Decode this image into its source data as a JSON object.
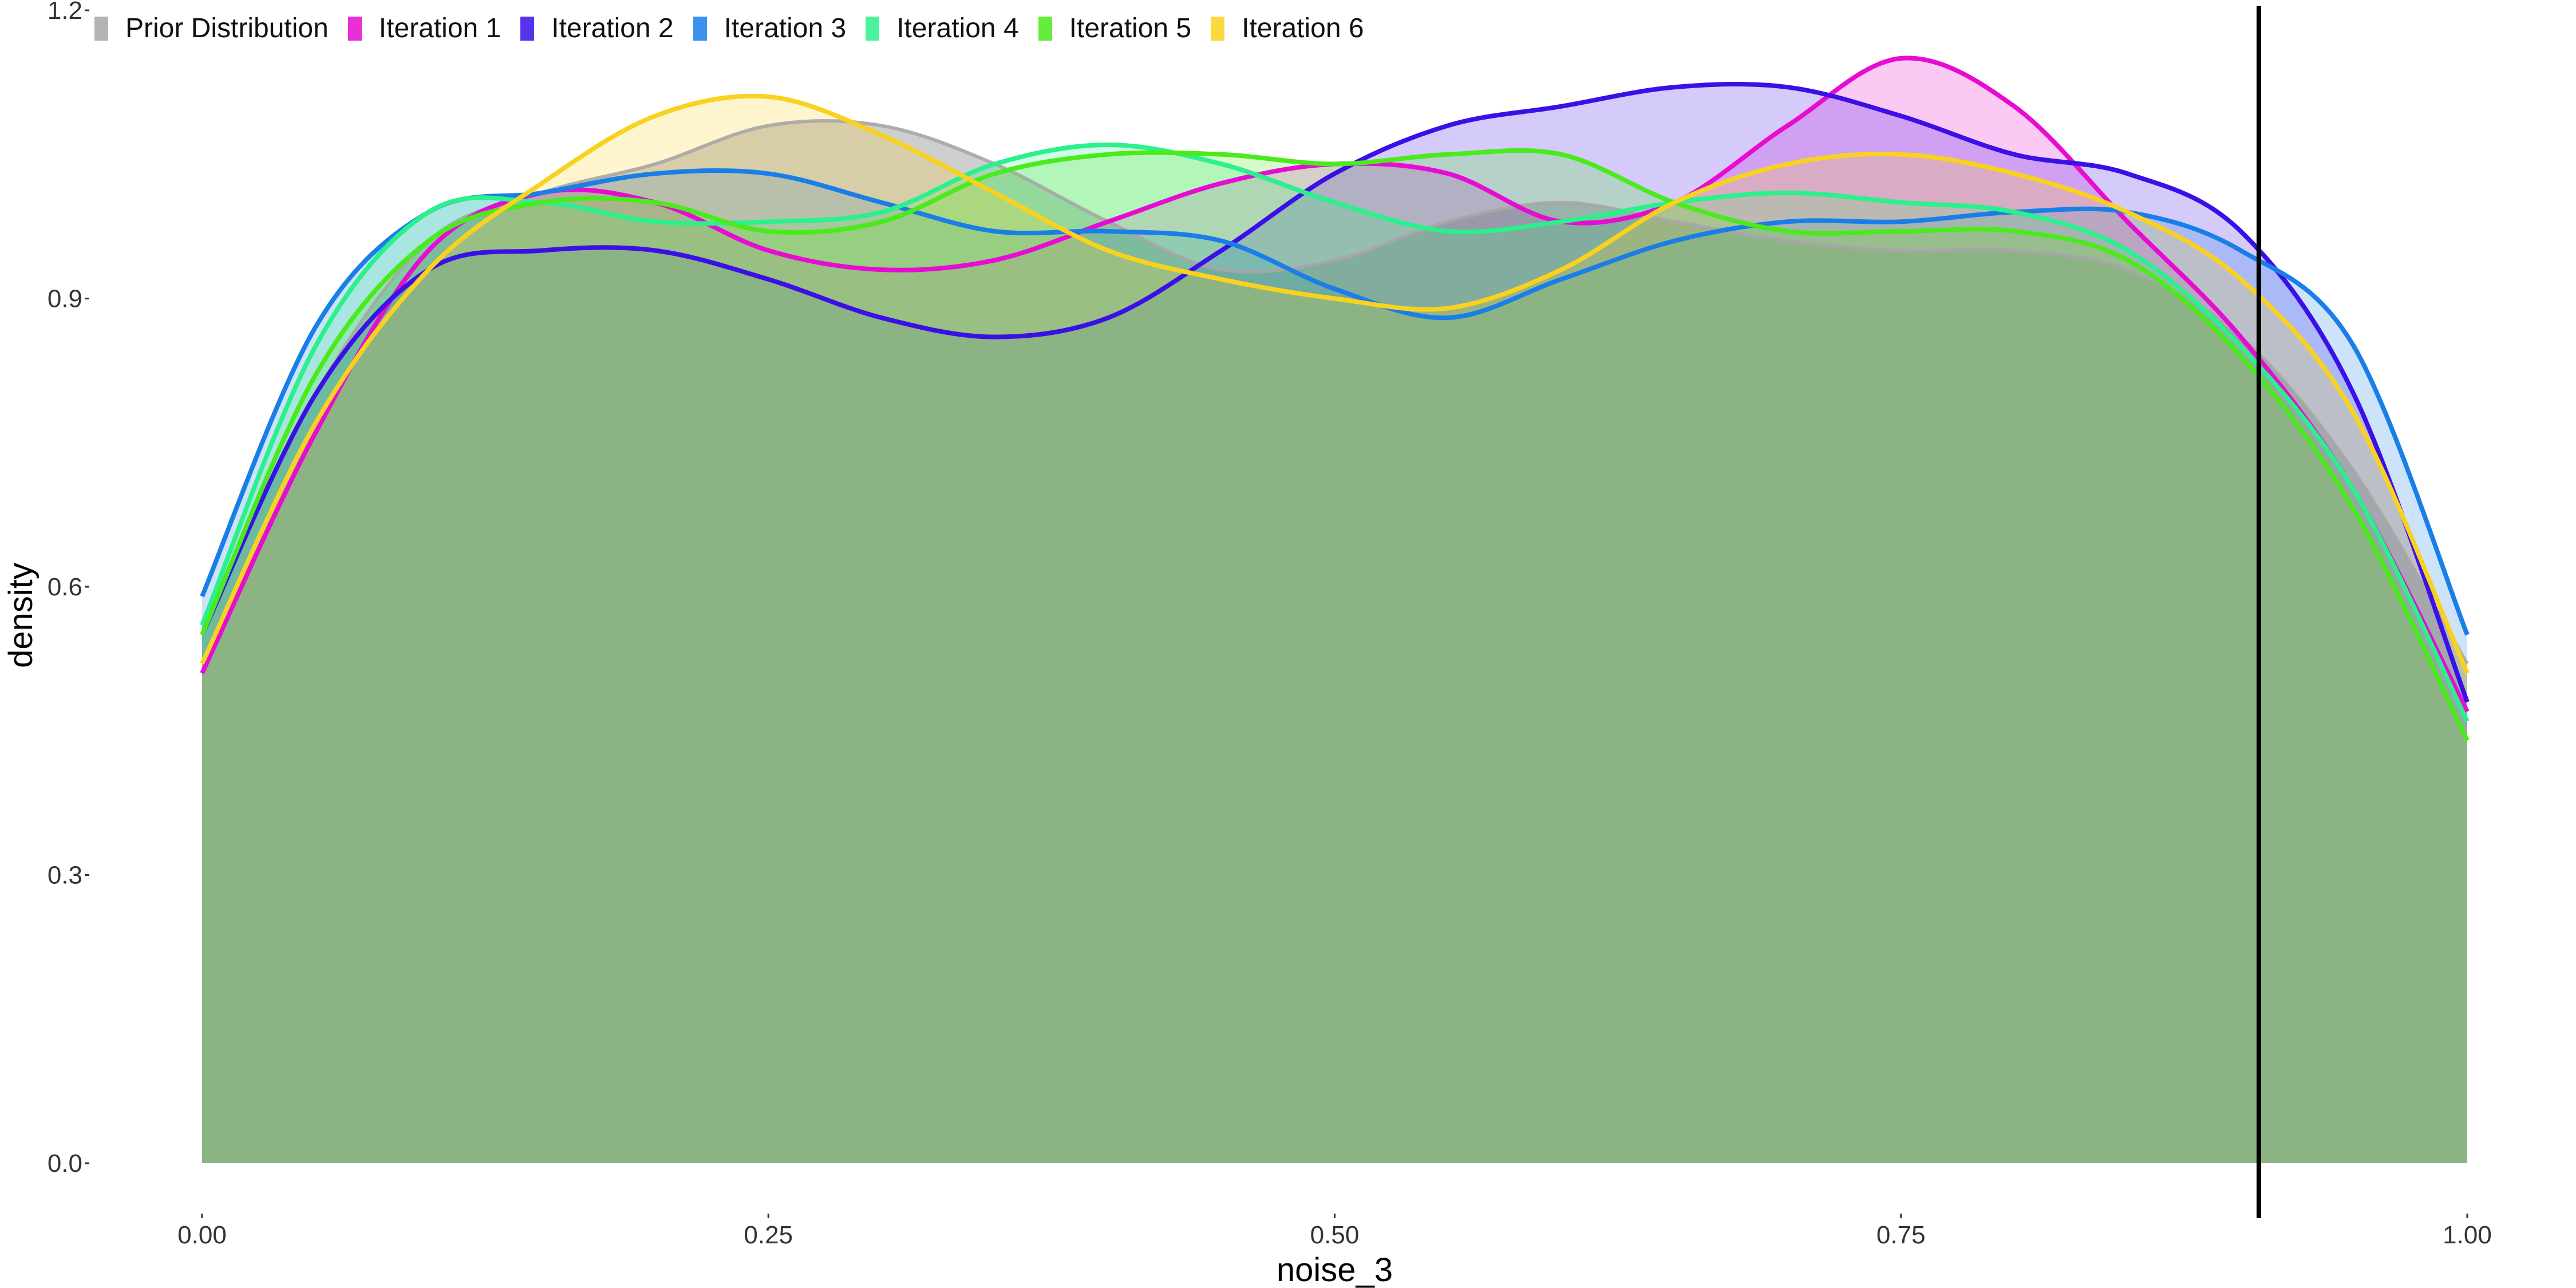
{
  "chart_data": {
    "type": "area",
    "xlabel": "noise_3",
    "ylabel": "density",
    "xlim": [
      0,
      1
    ],
    "ylim": [
      0,
      1.2
    ],
    "x_ticks": [
      0,
      0.25,
      0.5,
      0.75,
      1
    ],
    "x_tick_labels": [
      "0.00",
      "0.25",
      "0.50",
      "0.75",
      "1.00"
    ],
    "y_ticks": [
      0,
      0.3,
      0.6,
      0.9,
      1.2
    ],
    "y_tick_labels": [
      "0.0",
      "0.3",
      "0.6",
      "0.9",
      "1.2"
    ],
    "grid": false,
    "legend_position": "top-left",
    "vline_x": 0.908,
    "x": [
      0,
      0.05,
      0.1,
      0.15,
      0.2,
      0.25,
      0.3,
      0.35,
      0.4,
      0.45,
      0.5,
      0.55,
      0.6,
      0.65,
      0.7,
      0.75,
      0.8,
      0.85,
      0.9,
      0.95,
      1
    ],
    "series": [
      {
        "name": "Prior Distribution",
        "color": "#A6A6A6",
        "values": [
          0.56,
          0.8,
          0.96,
          1.01,
          1.04,
          1.08,
          1.08,
          1.04,
          0.98,
          0.93,
          0.94,
          0.98,
          1.0,
          0.98,
          0.96,
          0.95,
          0.95,
          0.93,
          0.86,
          0.72,
          0.52
        ]
      },
      {
        "name": "Iteration 1",
        "color": "#E60CD2",
        "values": [
          0.51,
          0.76,
          0.95,
          1.01,
          1.0,
          0.95,
          0.93,
          0.94,
          0.98,
          1.02,
          1.04,
          1.03,
          0.98,
          1.0,
          1.08,
          1.15,
          1.1,
          0.98,
          0.86,
          0.7,
          0.47
        ]
      },
      {
        "name": "Iteration 2",
        "color": "#3A10E6",
        "values": [
          0.55,
          0.8,
          0.93,
          0.95,
          0.95,
          0.92,
          0.88,
          0.86,
          0.88,
          0.95,
          1.03,
          1.08,
          1.1,
          1.12,
          1.12,
          1.09,
          1.05,
          1.03,
          0.97,
          0.8,
          0.48
        ]
      },
      {
        "name": "Iteration 3",
        "color": "#1A7EE8",
        "values": [
          0.59,
          0.87,
          0.99,
          1.01,
          1.03,
          1.03,
          1.0,
          0.97,
          0.97,
          0.96,
          0.91,
          0.88,
          0.92,
          0.96,
          0.98,
          0.98,
          0.99,
          0.99,
          0.95,
          0.85,
          0.55
        ]
      },
      {
        "name": "Iteration 4",
        "color": "#2BF08C",
        "values": [
          0.56,
          0.85,
          0.99,
          1.0,
          0.98,
          0.98,
          0.99,
          1.04,
          1.06,
          1.04,
          1.0,
          0.97,
          0.98,
          1.0,
          1.01,
          1.0,
          0.99,
          0.95,
          0.85,
          0.7,
          0.46
        ]
      },
      {
        "name": "Iteration 5",
        "color": "#4AEA1C",
        "values": [
          0.55,
          0.82,
          0.96,
          1.0,
          1.0,
          0.97,
          0.98,
          1.03,
          1.05,
          1.05,
          1.04,
          1.05,
          1.05,
          1.0,
          0.97,
          0.97,
          0.97,
          0.94,
          0.84,
          0.68,
          0.44
        ]
      },
      {
        "name": "Iteration 6",
        "color": "#F9D21F",
        "values": [
          0.52,
          0.77,
          0.93,
          1.02,
          1.09,
          1.11,
          1.07,
          1.01,
          0.95,
          0.92,
          0.9,
          0.89,
          0.93,
          1.0,
          1.04,
          1.05,
          1.03,
          0.99,
          0.92,
          0.78,
          0.51
        ]
      }
    ]
  }
}
